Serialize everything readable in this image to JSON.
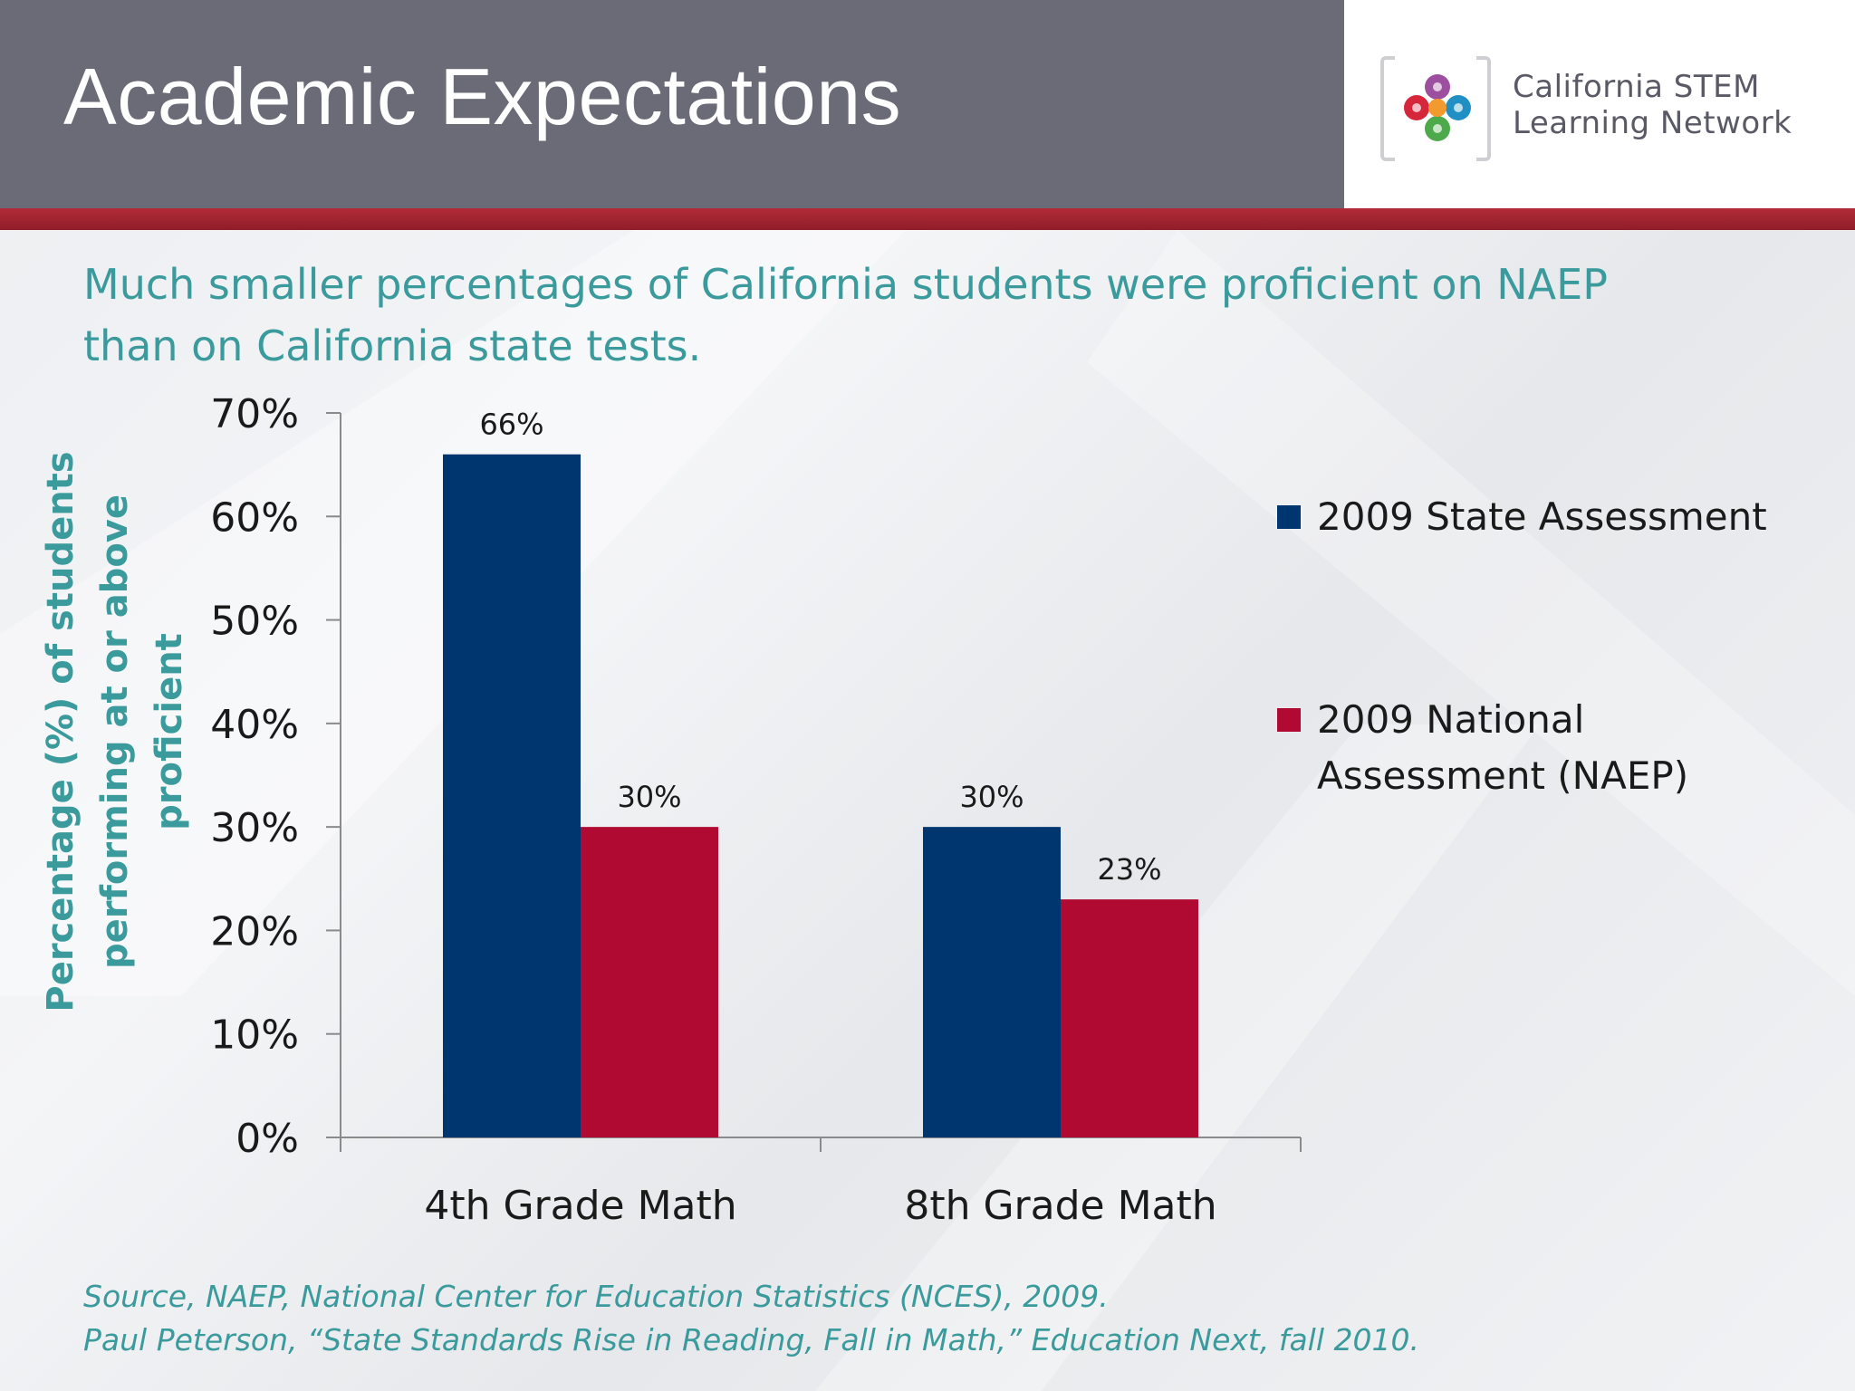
{
  "slide": {
    "title": "Academic Expectations",
    "subtitle_lines": [
      "Much smaller percentages of California students were proficient on NAEP",
      "than on California state tests."
    ],
    "logo": {
      "line1": "California STEM",
      "line2": "Learning Network"
    },
    "source_lines": [
      "Source, NAEP, National Center for Education Statistics (NCES), 2009.",
      "Paul Peterson, “State Standards Rise in Reading, Fall in Math,” Education Next, fall 2010."
    ],
    "colors": {
      "header": "#6b6b78",
      "accent_red": "#b22a37",
      "teal_text": "#3a9a9c"
    }
  },
  "chart_data": {
    "type": "bar",
    "categories": [
      "4th Grade Math",
      "8th Grade Math"
    ],
    "series": [
      {
        "name": "2009 State Assessment",
        "values": [
          66,
          30
        ],
        "color": "#003670"
      },
      {
        "name": "2009 National Assessment (NAEP)",
        "values": [
          30,
          23
        ],
        "color": "#b00a32"
      }
    ],
    "data_labels": [
      [
        "66%",
        "30%"
      ],
      [
        "30%",
        "23%"
      ]
    ],
    "ylabel_lines": [
      "Percentage (%) of students",
      "performing at or above",
      "proficient"
    ],
    "ylim": [
      0,
      70
    ],
    "yticks": [
      0,
      10,
      20,
      30,
      40,
      50,
      60,
      70
    ],
    "ytick_labels": [
      "0%",
      "10%",
      "20%",
      "30%",
      "40%",
      "50%",
      "60%",
      "70%"
    ],
    "legend_position": "right",
    "legend_lines": [
      [
        "2009 State Assessment"
      ],
      [
        "2009 National",
        "Assessment (NAEP)"
      ]
    ],
    "grid": false
  }
}
